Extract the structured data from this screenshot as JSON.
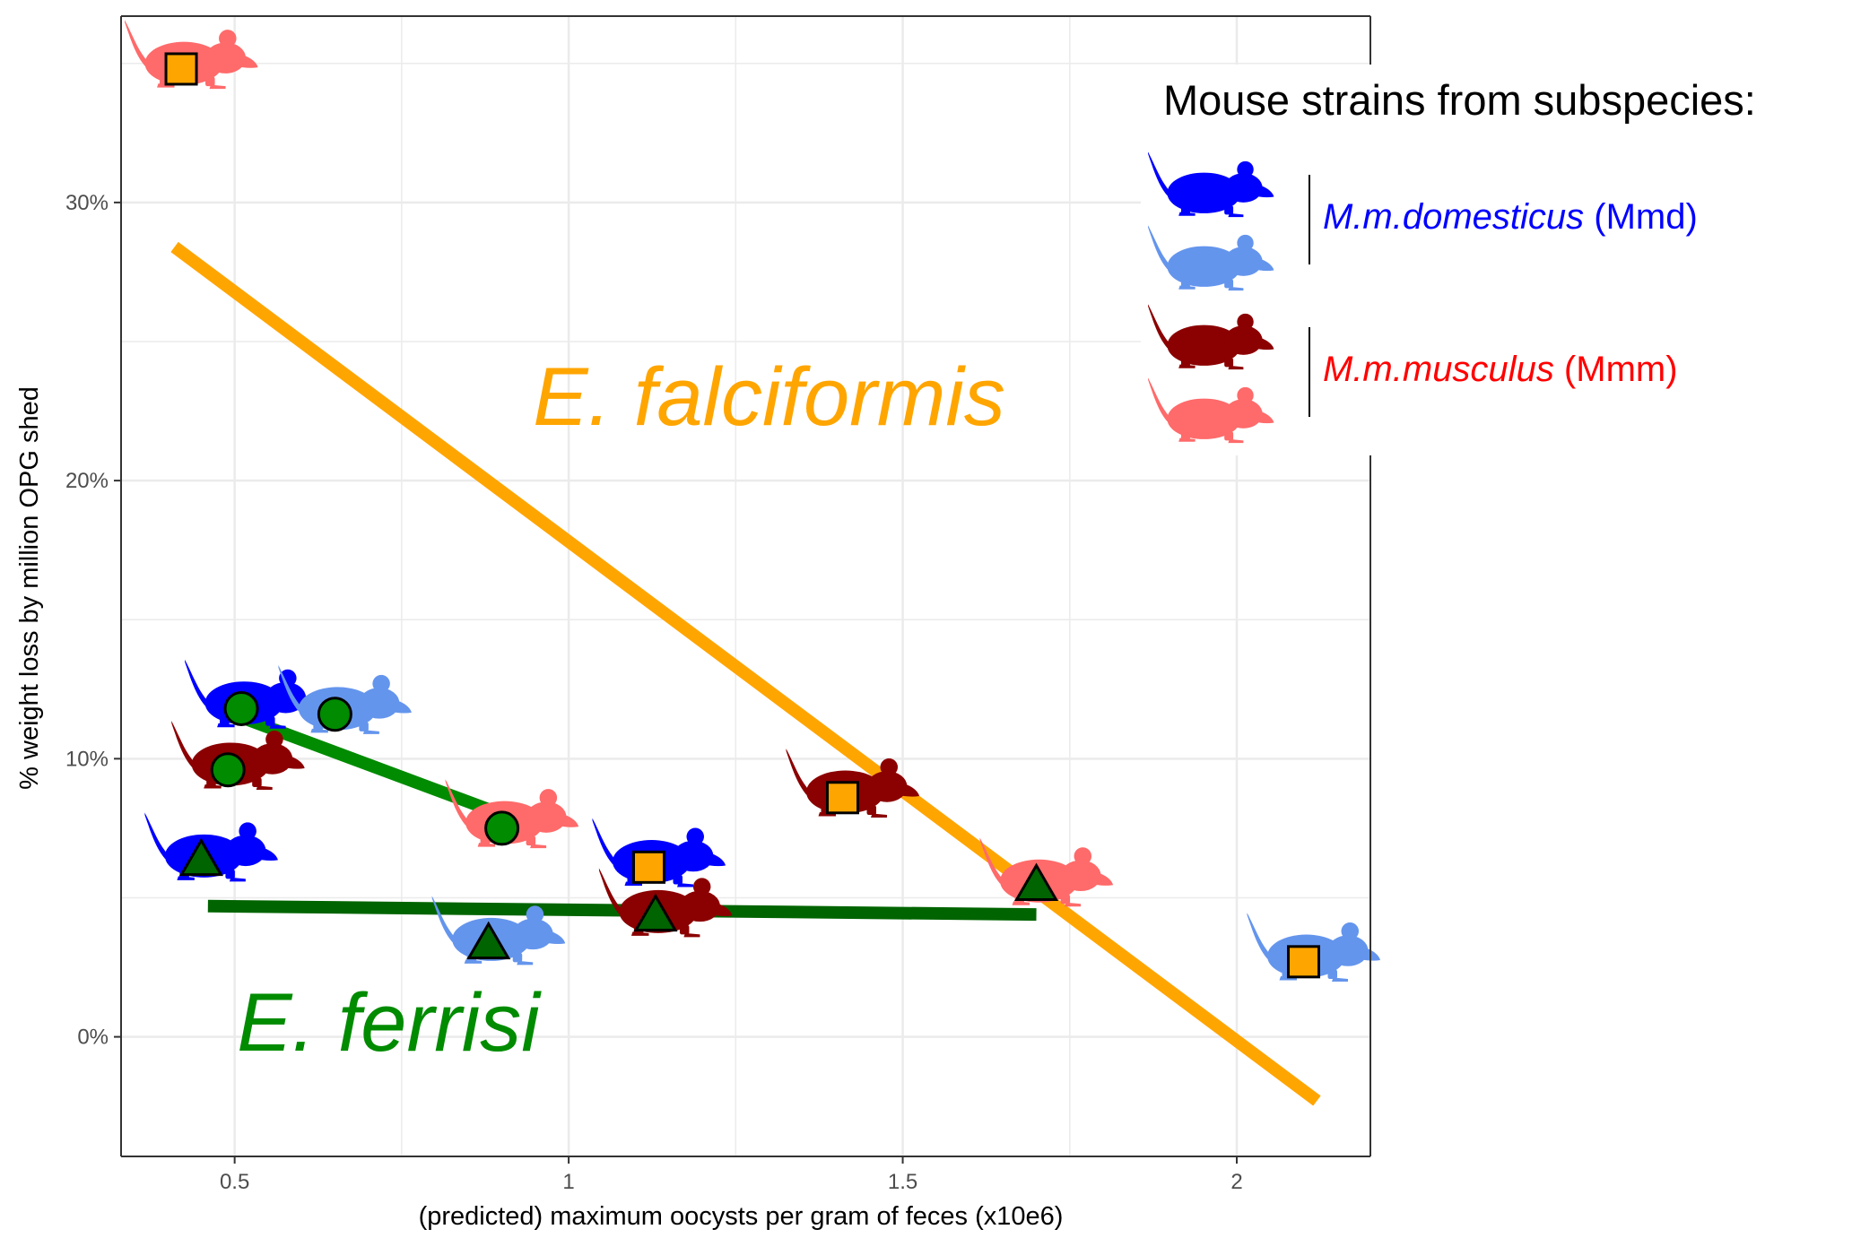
{
  "colors": {
    "Mmd_dark": "#0000FF",
    "Mmd_light": "#6495ED",
    "Mmm_dark": "#8B0000",
    "Mmm_light": "#FF6A6A",
    "falciformis": "#FFA500",
    "ferrisi_circle": "#008B00",
    "ferrisi_triangle": "#006400",
    "grid": "#EBEBEB",
    "axis": "#333333"
  },
  "chart_data": {
    "type": "scatter",
    "title": "",
    "xlabel": "(predicted) maximum oocysts per gram of feces (x10e6)",
    "ylabel": "% weight loss by million OPG shed",
    "xlim": [
      0.33,
      2.2
    ],
    "ylim": [
      -4.3,
      36.7
    ],
    "x_ticks": [
      0.5,
      1,
      1.5,
      2
    ],
    "x_tick_labels": [
      "0.5",
      "1",
      "1.5",
      "2"
    ],
    "y_ticks": [
      0,
      10,
      20,
      30
    ],
    "y_tick_labels": [
      "0%",
      "10%",
      "20%",
      "30%"
    ],
    "grid": true,
    "annotations": [
      {
        "text": "E. falciformis",
        "x": 1.3,
        "y": 22,
        "color": "#FFA500"
      },
      {
        "text": "E. ferrisi",
        "x": 0.73,
        "y": -0.5,
        "color": "#008B00"
      }
    ],
    "series": [
      {
        "marker": "square",
        "fill": "#FFA500",
        "points": [
          {
            "x": 0.42,
            "y": 34.8,
            "strain_color": "#FF6A6A"
          },
          {
            "x": 1.41,
            "y": 8.6,
            "strain_color": "#8B0000"
          },
          {
            "x": 1.12,
            "y": 6.1,
            "strain_color": "#0000FF"
          },
          {
            "x": 2.1,
            "y": 2.7,
            "strain_color": "#6495ED"
          }
        ]
      },
      {
        "marker": "circle",
        "fill": "#008B00",
        "points": [
          {
            "x": 0.51,
            "y": 11.8,
            "strain_color": "#0000FF"
          },
          {
            "x": 0.65,
            "y": 11.6,
            "strain_color": "#6495ED"
          },
          {
            "x": 0.49,
            "y": 9.6,
            "strain_color": "#8B0000"
          },
          {
            "x": 0.9,
            "y": 7.5,
            "strain_color": "#FF6A6A"
          }
        ]
      },
      {
        "marker": "triangle",
        "fill": "#006400",
        "points": [
          {
            "x": 0.45,
            "y": 6.3,
            "strain_color": "#0000FF"
          },
          {
            "x": 0.88,
            "y": 3.3,
            "strain_color": "#6495ED"
          },
          {
            "x": 1.13,
            "y": 4.3,
            "strain_color": "#8B0000"
          },
          {
            "x": 1.7,
            "y": 5.4,
            "strain_color": "#FF6A6A"
          }
        ]
      }
    ],
    "fit_lines": [
      {
        "from": [
          0.41,
          28.4
        ],
        "to": [
          2.12,
          -2.3
        ],
        "color": "#FFA500",
        "width": 14
      },
      {
        "from": [
          0.52,
          11.4
        ],
        "to": [
          0.9,
          8.0
        ],
        "color": "#008B00",
        "width": 14
      },
      {
        "from": [
          0.46,
          4.7
        ],
        "to": [
          1.7,
          4.4
        ],
        "color": "#006400",
        "width": 14
      }
    ],
    "legend": {
      "title": "Mouse strains from subspecies:",
      "placement": "top-right",
      "groups": [
        {
          "label_italic": "M.m.domesticus",
          "label_suffix": " (Mmd)",
          "text_color": "#0000FF",
          "mice": [
            "#0000FF",
            "#6495ED"
          ]
        },
        {
          "label_italic": "M.m.musculus",
          "label_suffix": " (Mmm)",
          "text_color": "#FF0000",
          "mice": [
            "#8B0000",
            "#FF6A6A"
          ]
        }
      ]
    }
  }
}
